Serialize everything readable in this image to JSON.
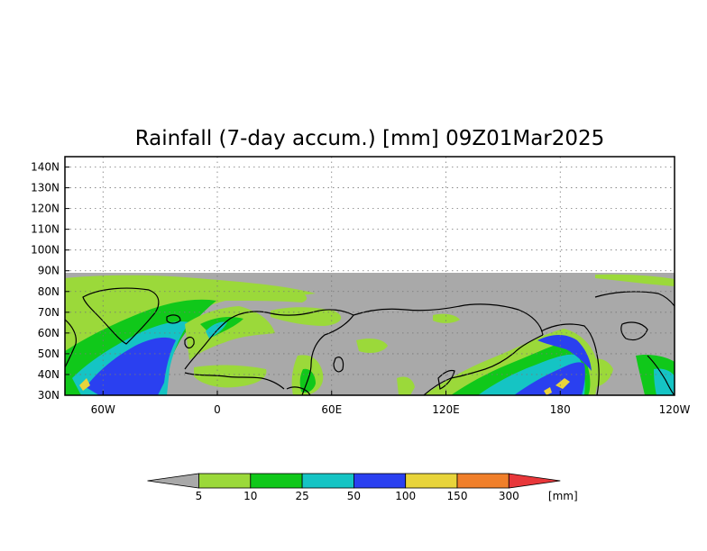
{
  "title": "Rainfall (7-day accum.) [mm] 09Z01Mar2025",
  "map": {
    "projection": "cylindrical",
    "lat_range": [
      30,
      145
    ],
    "lon_range": [
      -80,
      240
    ],
    "data_region": "30N-90N",
    "lat_ticks": [
      {
        "value": 30,
        "label": "30N"
      },
      {
        "value": 40,
        "label": "40N"
      },
      {
        "value": 50,
        "label": "50N"
      },
      {
        "value": 60,
        "label": "60N"
      },
      {
        "value": 70,
        "label": "70N"
      },
      {
        "value": 80,
        "label": "80N"
      },
      {
        "value": 90,
        "label": "90N"
      },
      {
        "value": 100,
        "label": "100N"
      },
      {
        "value": 110,
        "label": "110N"
      },
      {
        "value": 120,
        "label": "120N"
      },
      {
        "value": 130,
        "label": "130N"
      },
      {
        "value": 140,
        "label": "140N"
      }
    ],
    "lon_ticks": [
      {
        "value": -60,
        "label": "60W"
      },
      {
        "value": 0,
        "label": "0"
      },
      {
        "value": 60,
        "label": "60E"
      },
      {
        "value": 120,
        "label": "120E"
      },
      {
        "value": 180,
        "label": "180"
      },
      {
        "value": 240,
        "label": "120W"
      }
    ],
    "grid": "dotted"
  },
  "colorbar": {
    "unit": "[mm]",
    "under_color": "#a9a9a9",
    "over_color": "#e8373a",
    "bins": [
      {
        "color": "#a9a9a9"
      },
      {
        "color": "#9bd93a"
      },
      {
        "color": "#10c81a"
      },
      {
        "color": "#15c4c4"
      },
      {
        "color": "#2a40f0"
      },
      {
        "color": "#e8d43a"
      },
      {
        "color": "#f07f2a"
      },
      {
        "color": "#e8373a"
      }
    ],
    "labels": [
      "5",
      "10",
      "25",
      "50",
      "100",
      "150",
      "300"
    ]
  },
  "colors": {
    "no_rain": "#a9a9a9",
    "light": "#9bd93a",
    "moderate": "#10c81a",
    "heavy": "#15c4c4",
    "very_heavy": "#2a40f0",
    "extreme": "#e8d43a",
    "coast": "#000000"
  }
}
